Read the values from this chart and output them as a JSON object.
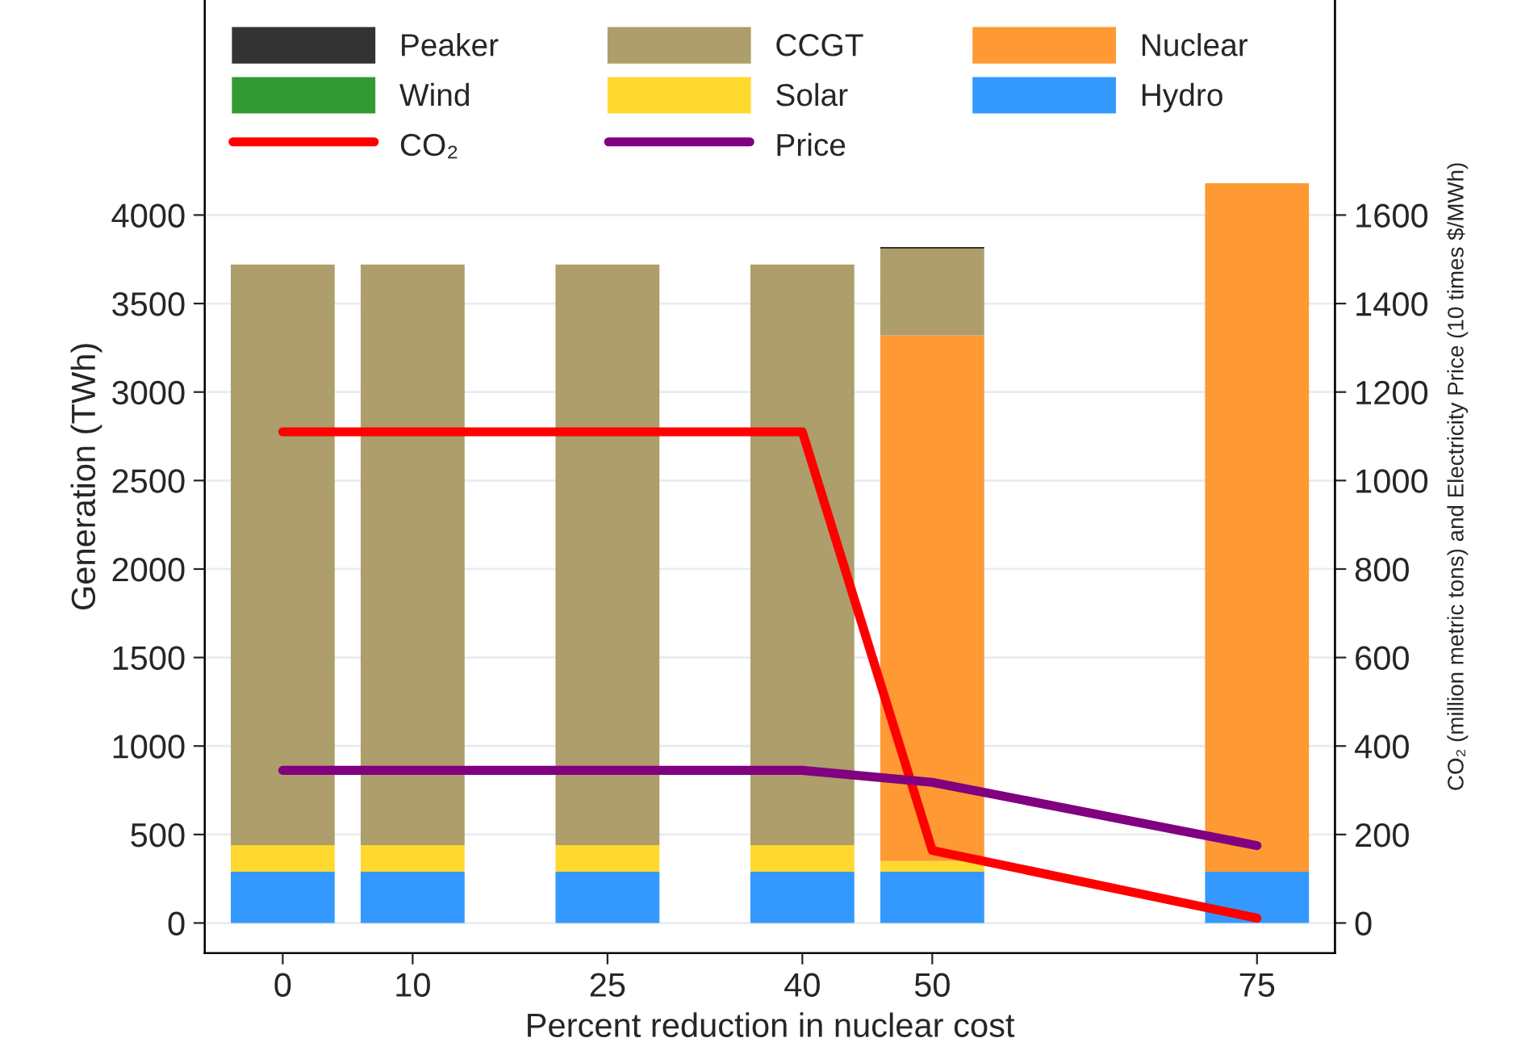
{
  "chart_data": {
    "type": "bar",
    "stacked": true,
    "xlabel": "Percent reduction in nuclear cost",
    "ylabel": "Generation (TWh)",
    "y2label": "CO₂ (million metric tons) and Electricity Price (10 times $/MWh)",
    "x": [
      0,
      10,
      25,
      40,
      50,
      75
    ],
    "xlim": [
      -6,
      81
    ],
    "xticks": [
      0,
      10,
      25,
      40,
      50,
      75
    ],
    "ylim": [
      -170,
      5215
    ],
    "yticks": [
      0,
      500,
      1000,
      1500,
      2000,
      2500,
      3000,
      3500,
      4000
    ],
    "y2lim": [
      -68,
      2086
    ],
    "y2ticks": [
      0,
      200,
      400,
      600,
      800,
      1000,
      1200,
      1400,
      1600
    ],
    "grid": "y",
    "legend": "top",
    "series": [
      {
        "name": "Hydro",
        "color": "#3399ff",
        "values": [
          290,
          290,
          290,
          290,
          290,
          290
        ]
      },
      {
        "name": "Solar",
        "color": "#ffd92f",
        "values": [
          150,
          150,
          150,
          150,
          60,
          0
        ]
      },
      {
        "name": "Wind",
        "color": "#339933",
        "values": [
          0,
          0,
          0,
          0,
          0,
          0
        ]
      },
      {
        "name": "Nuclear",
        "color": "#ff9933",
        "values": [
          0,
          0,
          0,
          0,
          2970,
          3890
        ]
      },
      {
        "name": "CCGT",
        "color": "#ad9e6b",
        "values": [
          3280,
          3280,
          3280,
          3280,
          490,
          0
        ]
      },
      {
        "name": "Peaker",
        "color": "#333333",
        "values": [
          0,
          0,
          0,
          0,
          10,
          0
        ]
      },
      {
        "name": "CO₂",
        "type": "line",
        "axis": "y2",
        "color": "#ff0000",
        "values": [
          1110,
          1110,
          1110,
          1110,
          164,
          11
        ]
      },
      {
        "name": "Price",
        "type": "line",
        "axis": "y2",
        "color": "#800080",
        "values": [
          345,
          345,
          345,
          345,
          318,
          175
        ]
      }
    ]
  }
}
